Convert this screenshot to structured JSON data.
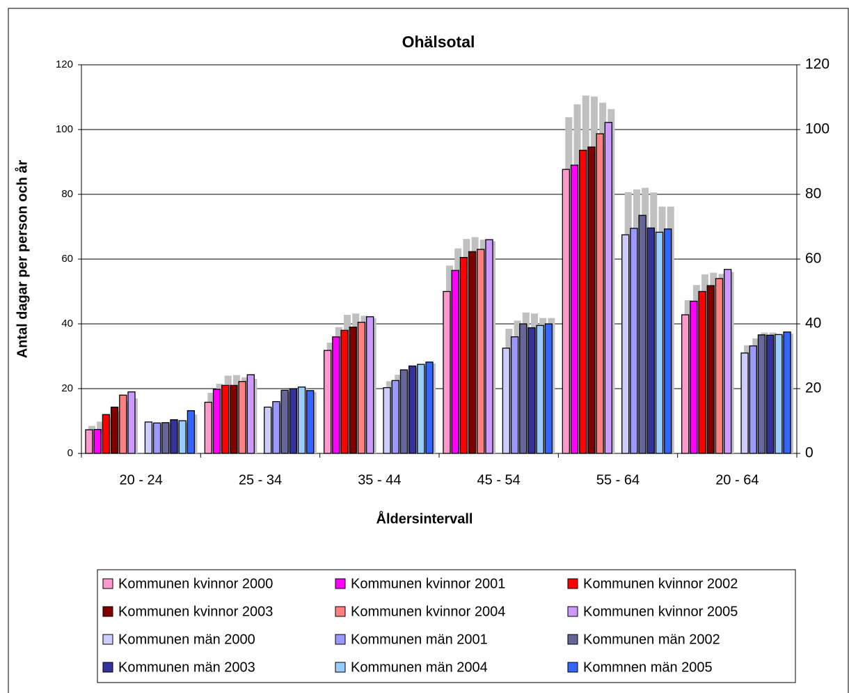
{
  "chart_data": {
    "type": "bar",
    "title": "Ohälsotal",
    "x_label": "Åldersintervall",
    "y_label": "Antal dagar per person och år",
    "categories": [
      "20 - 24",
      "25 - 34",
      "35 - 44",
      "45 - 54",
      "55 - 64",
      "20 - 64"
    ],
    "ylim": [
      0,
      120
    ],
    "yticks": [
      0,
      20,
      40,
      60,
      80,
      100,
      120
    ],
    "y2lim": [
      0,
      120
    ],
    "y2ticks": [
      0,
      20,
      40,
      60,
      80,
      100,
      120
    ],
    "grid": true,
    "legend": "bottom",
    "series": [
      {
        "name": "Kommunen kvinnor 2000",
        "color": "#ff99cc",
        "values": [
          7.3,
          15.8,
          31.8,
          50,
          87.7,
          42.8
        ]
      },
      {
        "name": "Kommunen kvinnor 2001",
        "color": "#ff00ff",
        "values": [
          7.4,
          19.8,
          36,
          56.5,
          89,
          47
        ]
      },
      {
        "name": "Kommunen kvinnor 2002",
        "color": "#ff0000",
        "values": [
          12,
          21,
          38,
          60.5,
          93.6,
          50
        ]
      },
      {
        "name": "Kommunen kvinnor 2003",
        "color": "#800000",
        "values": [
          14.3,
          21,
          39,
          62.3,
          94.6,
          51.8
        ]
      },
      {
        "name": "Kommunen kvinnor 2004",
        "color": "#ff8080",
        "values": [
          18,
          22.2,
          40.5,
          63,
          98.7,
          54
        ]
      },
      {
        "name": "Kommunen kvinnor 2005",
        "color": "#cc99ff",
        "values": [
          19,
          24.3,
          42.2,
          66,
          102.2,
          56.8
        ]
      },
      {
        "name": "Kommunen män 2000",
        "color": "#ccccff",
        "values": [
          9.7,
          14.3,
          20.3,
          32.5,
          67.5,
          31
        ]
      },
      {
        "name": "Kommunen män 2001",
        "color": "#9999ff",
        "values": [
          9.4,
          16,
          22.5,
          36,
          69.5,
          33.2
        ]
      },
      {
        "name": "Kommunen män 2002",
        "color": "#666699",
        "values": [
          9.5,
          19.5,
          25.8,
          40,
          73.5,
          36.6
        ]
      },
      {
        "name": "Kommunen män 2003",
        "color": "#333399",
        "values": [
          10.4,
          20,
          27,
          38.8,
          69.6,
          36.5
        ]
      },
      {
        "name": "Kommunen män 2004",
        "color": "#99ccff",
        "values": [
          10.1,
          20.5,
          27.5,
          39.5,
          68.3,
          36.7
        ]
      },
      {
        "name": "Kommnen män 2005",
        "color": "#3366ff",
        "values": [
          13.2,
          19.4,
          28.2,
          40,
          69.3,
          37.5
        ]
      },
      {
        "color": "#c0c0c0",
        "axis": "y2",
        "values": [
          8.5,
          18.7,
          34.2,
          58,
          103.8,
          47.3
        ]
      },
      {
        "color": "#c0c0c0",
        "axis": "y2",
        "values": [
          9.8,
          21.5,
          39,
          63.3,
          107.8,
          52
        ]
      },
      {
        "color": "#c0c0c0",
        "axis": "y2",
        "values": [
          11,
          24,
          42.8,
          66.2,
          110.5,
          55.3
        ]
      },
      {
        "color": "#c0c0c0",
        "axis": "y2",
        "values": [
          13,
          24.2,
          43.2,
          66.8,
          110.2,
          55.8
        ]
      },
      {
        "color": "#c0c0c0",
        "axis": "y2",
        "values": [
          16,
          23.5,
          42.5,
          66,
          108.3,
          55.4
        ]
      },
      {
        "color": "#c0c0c0",
        "axis": "y2",
        "values": [
          17,
          23,
          41.8,
          65.5,
          106.3,
          56
        ]
      },
      {
        "color": "#c0c0c0",
        "axis": "y2",
        "values": [
          9,
          14,
          22.3,
          38.5,
          80.7,
          33.4
        ]
      },
      {
        "color": "#c0c0c0",
        "axis": "y2",
        "values": [
          9,
          15.5,
          24.3,
          41,
          81.5,
          35.5
        ]
      },
      {
        "color": "#c0c0c0",
        "axis": "y2",
        "values": [
          9,
          19,
          25.5,
          43.5,
          82,
          37.3
        ]
      },
      {
        "color": "#c0c0c0",
        "axis": "y2",
        "values": [
          9.5,
          19.5,
          26.5,
          43.2,
          80.6,
          37.3
        ]
      },
      {
        "color": "#c0c0c0",
        "axis": "y2",
        "values": [
          9.5,
          20,
          27,
          41.8,
          76.2,
          36.5
        ]
      },
      {
        "color": "#c0c0c0",
        "axis": "y2",
        "values": [
          12,
          19,
          27.8,
          41.8,
          76.2,
          37
        ]
      }
    ]
  }
}
